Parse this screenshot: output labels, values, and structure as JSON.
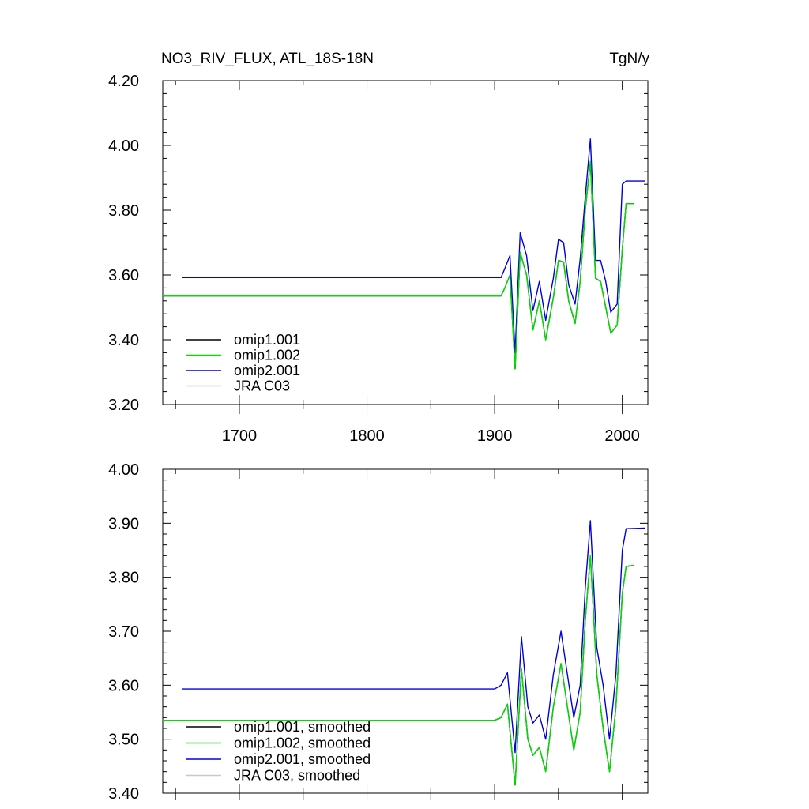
{
  "figure": {
    "title_left": "NO3_RIV_FLUX, ATL_18S-18N",
    "title_right": "TgN/y"
  },
  "chart_data": [
    {
      "type": "line",
      "xlim": [
        1640,
        2020
      ],
      "ylim": [
        3.2,
        4.2
      ],
      "xticks": [
        1700,
        1800,
        1900,
        2000
      ],
      "yticks": [
        3.2,
        3.4,
        3.6,
        3.8,
        4.0,
        4.2
      ],
      "ytick_labels": [
        "3.20",
        "3.40",
        "3.60",
        "3.80",
        "4.00",
        "4.20"
      ],
      "legend": "lower-left",
      "series": [
        {
          "name": "omip1.001",
          "color": "#000000",
          "x": [
            1640,
            1905,
            1908,
            1912,
            1916,
            1920,
            1925,
            1930,
            1935,
            1940,
            1946,
            1950,
            1954,
            1958,
            1963,
            1967,
            1971,
            1975,
            1979,
            1983,
            1987,
            1991,
            1996,
            2000,
            2003,
            2009
          ],
          "y": [
            3.535,
            3.535,
            3.56,
            3.6,
            3.31,
            3.67,
            3.6,
            3.43,
            3.52,
            3.4,
            3.53,
            3.645,
            3.64,
            3.52,
            3.45,
            3.58,
            3.8,
            3.95,
            3.59,
            3.58,
            3.5,
            3.42,
            3.445,
            3.68,
            3.82,
            3.82
          ]
        },
        {
          "name": "omip1.002",
          "color": "#00dd00",
          "x": [
            1640,
            1905,
            1908,
            1912,
            1916,
            1920,
            1925,
            1930,
            1935,
            1940,
            1946,
            1950,
            1954,
            1958,
            1963,
            1967,
            1971,
            1975,
            1979,
            1983,
            1987,
            1991,
            1996,
            2000,
            2003,
            2009
          ],
          "y": [
            3.535,
            3.535,
            3.56,
            3.6,
            3.31,
            3.67,
            3.6,
            3.43,
            3.52,
            3.4,
            3.53,
            3.645,
            3.64,
            3.52,
            3.45,
            3.58,
            3.8,
            3.95,
            3.59,
            3.58,
            3.5,
            3.42,
            3.445,
            3.68,
            3.82,
            3.82
          ]
        },
        {
          "name": "omip2.001",
          "color": "#0000dd",
          "x": [
            1655,
            1905,
            1908,
            1912,
            1916,
            1920,
            1925,
            1930,
            1935,
            1940,
            1946,
            1950,
            1954,
            1958,
            1963,
            1967,
            1971,
            1975,
            1979,
            1983,
            1987,
            1991,
            1996,
            2000,
            2003,
            2018
          ],
          "y": [
            3.592,
            3.592,
            3.62,
            3.66,
            3.36,
            3.73,
            3.66,
            3.49,
            3.58,
            3.46,
            3.59,
            3.71,
            3.7,
            3.57,
            3.51,
            3.65,
            3.84,
            4.02,
            3.645,
            3.645,
            3.58,
            3.485,
            3.51,
            3.88,
            3.89,
            3.89
          ]
        },
        {
          "name": "JRA C03",
          "color": "#c8c8c8",
          "x": [],
          "y": []
        }
      ]
    },
    {
      "type": "line",
      "xlim": [
        1640,
        2020
      ],
      "ylim": [
        3.4,
        4.0
      ],
      "xticks": [
        1700,
        1800,
        1900,
        2000
      ],
      "yticks": [
        3.4,
        3.5,
        3.6,
        3.7,
        3.8,
        3.9,
        4.0
      ],
      "ytick_labels": [
        "3.40",
        "3.50",
        "3.60",
        "3.70",
        "3.80",
        "3.90",
        "4.00"
      ],
      "legend": "lower-left",
      "series": [
        {
          "name": "omip1.001, smoothed",
          "color": "#000000",
          "x": [
            1640,
            1900,
            1905,
            1910,
            1916,
            1921,
            1926,
            1930,
            1935,
            1940,
            1946,
            1952,
            1957,
            1962,
            1967,
            1971,
            1975,
            1980,
            1985,
            1990,
            1995,
            2000,
            2003,
            2009
          ],
          "y": [
            3.535,
            3.535,
            3.54,
            3.565,
            3.415,
            3.63,
            3.5,
            3.47,
            3.485,
            3.44,
            3.56,
            3.64,
            3.56,
            3.48,
            3.55,
            3.72,
            3.84,
            3.62,
            3.52,
            3.44,
            3.56,
            3.77,
            3.82,
            3.822
          ]
        },
        {
          "name": "omip1.002, smoothed",
          "color": "#00dd00",
          "x": [
            1640,
            1900,
            1905,
            1910,
            1916,
            1921,
            1926,
            1930,
            1935,
            1940,
            1946,
            1952,
            1957,
            1962,
            1967,
            1971,
            1975,
            1980,
            1985,
            1990,
            1995,
            2000,
            2003,
            2009
          ],
          "y": [
            3.535,
            3.535,
            3.54,
            3.565,
            3.415,
            3.63,
            3.5,
            3.47,
            3.485,
            3.44,
            3.56,
            3.64,
            3.56,
            3.48,
            3.55,
            3.72,
            3.84,
            3.62,
            3.52,
            3.44,
            3.56,
            3.77,
            3.82,
            3.822
          ]
        },
        {
          "name": "omip2.001, smoothed",
          "color": "#0000dd",
          "x": [
            1655,
            1900,
            1905,
            1910,
            1916,
            1921,
            1926,
            1930,
            1935,
            1940,
            1946,
            1952,
            1957,
            1962,
            1967,
            1971,
            1975,
            1980,
            1985,
            1990,
            1995,
            2000,
            2003,
            2018
          ],
          "y": [
            3.593,
            3.593,
            3.6,
            3.623,
            3.475,
            3.69,
            3.56,
            3.53,
            3.545,
            3.5,
            3.62,
            3.7,
            3.62,
            3.54,
            3.6,
            3.78,
            3.905,
            3.67,
            3.6,
            3.5,
            3.62,
            3.85,
            3.89,
            3.891
          ]
        },
        {
          "name": "JRA C03, smoothed",
          "color": "#c8c8c8",
          "x": [],
          "y": []
        }
      ]
    }
  ]
}
